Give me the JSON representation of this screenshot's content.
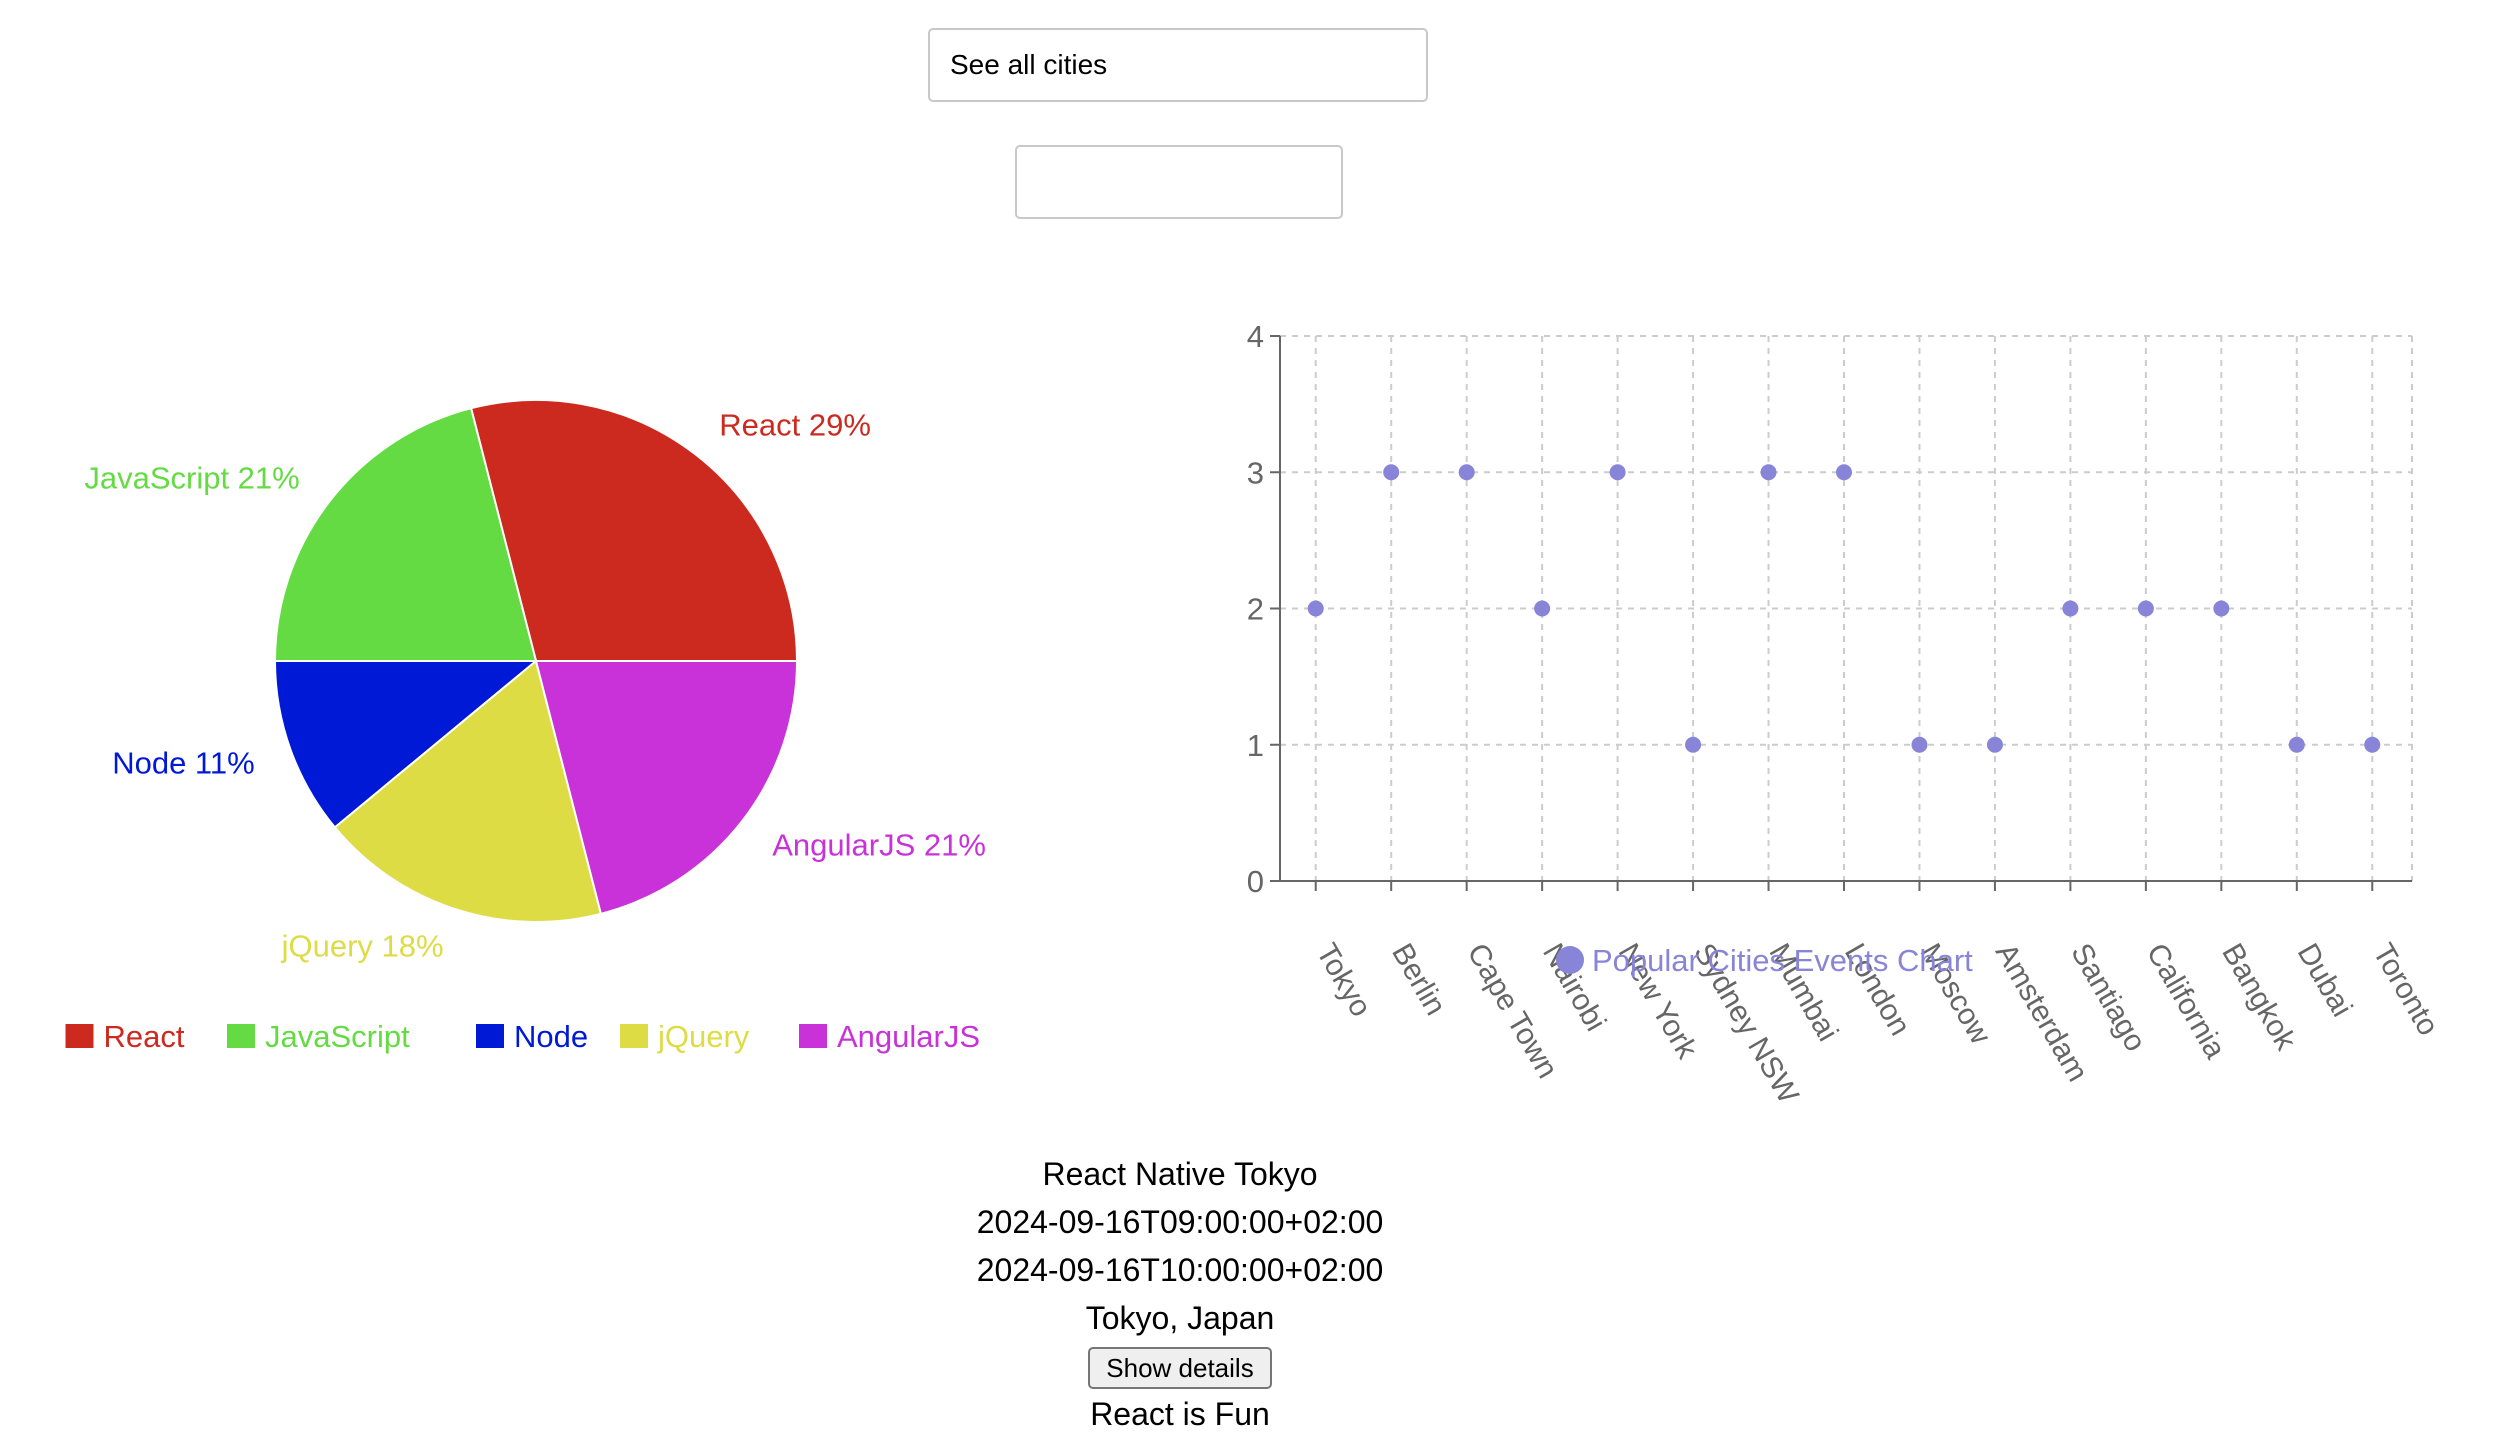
{
  "search": {
    "placeholder": "See all cities",
    "value": ""
  },
  "number_of_events": {
    "value": ""
  },
  "chart_data": [
    {
      "type": "pie",
      "slices": [
        {
          "label": "React",
          "value": 29,
          "color": "#cc2a1f"
        },
        {
          "label": "JavaScript",
          "value": 21,
          "color": "#64db42"
        },
        {
          "label": "Node",
          "value": 11,
          "color": "#0019d6"
        },
        {
          "label": "jQuery",
          "value": 18,
          "color": "#dedc45"
        },
        {
          "label": "AngularJS",
          "value": 21,
          "color": "#c832d8"
        }
      ],
      "slice_label_suffix": "%",
      "legend": "bottom"
    },
    {
      "type": "scatter",
      "categories": [
        "Tokyo",
        "Berlin",
        "Cape Town",
        "Nairobi",
        "New York",
        "Sydney NSW",
        "Mumbai",
        "London",
        "Moscow",
        "Amsterdam",
        "Santiago",
        "California",
        "Bangkok",
        "Dubai",
        "Toronto"
      ],
      "values": [
        2,
        3,
        3,
        2,
        3,
        1,
        3,
        3,
        1,
        1,
        2,
        2,
        2,
        1,
        1
      ],
      "ylim": [
        0,
        4
      ],
      "yticks": [
        0,
        1,
        2,
        3,
        4
      ],
      "grid": true,
      "legend": "bottom",
      "series_name": "Popular Cities Events Chart",
      "color": "#8884d8"
    }
  ],
  "event": {
    "summary": "React Native Tokyo",
    "start": "2024-09-16T09:00:00+02:00",
    "end": "2024-09-16T10:00:00+02:00",
    "location": "Tokyo, Japan",
    "details_button": "Show details",
    "next_summary": "React is Fun"
  }
}
